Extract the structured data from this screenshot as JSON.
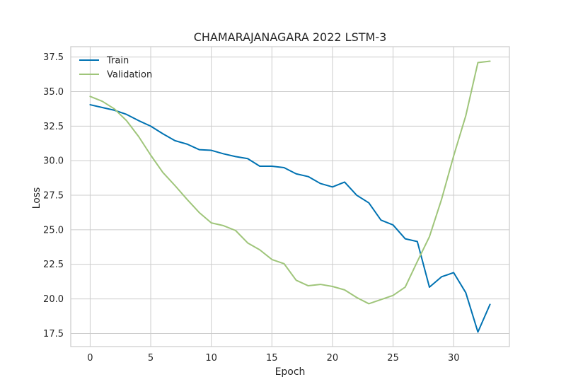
{
  "chart_data": {
    "type": "line",
    "title": "CHAMARAJANAGARA 2022 LSTM-3",
    "xlabel": "Epoch",
    "ylabel": "Loss",
    "xlim": [
      -1.6,
      34.6
    ],
    "ylim": [
      16.55,
      38.25
    ],
    "xticks": [
      0,
      5,
      10,
      15,
      20,
      25,
      30
    ],
    "yticks": [
      17.5,
      20.0,
      22.5,
      25.0,
      27.5,
      30.0,
      32.5,
      35.0,
      37.5
    ],
    "grid": true,
    "legend": "top-left",
    "x": [
      0,
      1,
      2,
      3,
      4,
      5,
      6,
      7,
      8,
      9,
      10,
      11,
      12,
      13,
      14,
      15,
      16,
      17,
      18,
      19,
      20,
      21,
      22,
      23,
      24,
      25,
      26,
      27,
      28,
      29,
      30,
      31,
      32,
      33
    ],
    "series": [
      {
        "name": "Train",
        "color": "#0072b2",
        "values": [
          34.05,
          33.85,
          33.65,
          33.35,
          32.9,
          32.5,
          31.95,
          31.45,
          31.2,
          30.8,
          30.75,
          30.5,
          30.3,
          30.15,
          29.6,
          29.6,
          29.5,
          29.05,
          28.85,
          28.35,
          28.1,
          28.45,
          27.5,
          26.95,
          25.7,
          25.35,
          24.35,
          24.15,
          20.85,
          21.6,
          21.9,
          20.45,
          17.6,
          19.6
        ]
      },
      {
        "name": "Validation",
        "color": "#9fc57a",
        "values": [
          34.65,
          34.3,
          33.75,
          32.9,
          31.75,
          30.4,
          29.15,
          28.2,
          27.2,
          26.25,
          25.5,
          25.3,
          24.95,
          24.05,
          23.55,
          22.85,
          22.55,
          21.35,
          20.95,
          21.05,
          20.9,
          20.65,
          20.1,
          19.65,
          19.95,
          20.25,
          20.85,
          22.7,
          24.5,
          27.2,
          30.35,
          33.25,
          37.1,
          37.2
        ]
      }
    ]
  }
}
